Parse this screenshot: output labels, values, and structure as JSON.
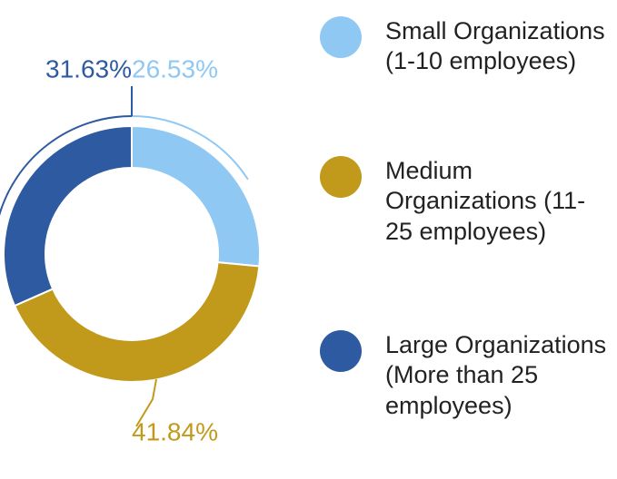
{
  "chart_data": {
    "type": "donut",
    "categories": [
      "Small Organizations (1-10 employees)",
      "Medium Organizations (11-25 employees)",
      "Large Organizations (More than 25 employees)"
    ],
    "values": [
      26.53,
      41.84,
      31.63
    ],
    "value_labels": [
      "26.53%",
      "41.84%",
      "31.63%"
    ],
    "colors": [
      "#90c8f4",
      "#c19a1b",
      "#2d5aa0"
    ],
    "legend": "right"
  }
}
